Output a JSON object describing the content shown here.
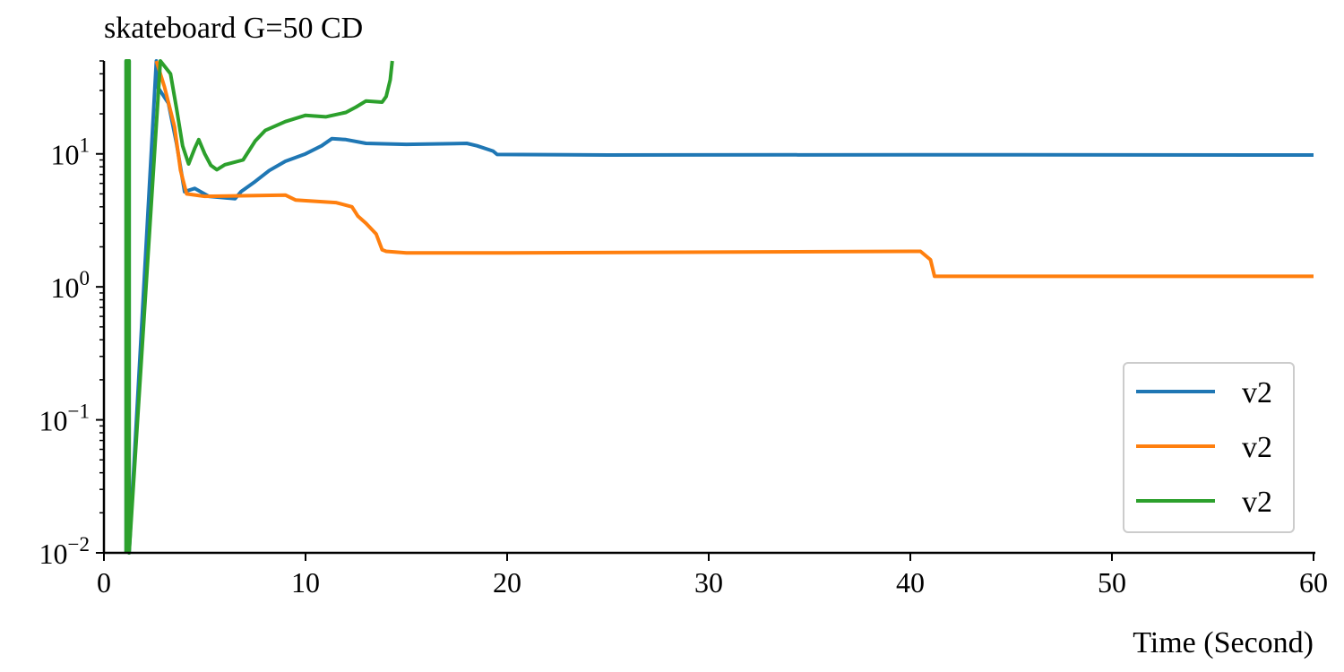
{
  "chart_data": {
    "type": "line",
    "title": "skateboard G=50 CD",
    "xlabel": "Time (Second)",
    "ylabel": "",
    "xlim": [
      0,
      60
    ],
    "ylim": [
      0.01,
      50
    ],
    "yscale": "log",
    "grid": false,
    "legend_position": "bottom-right",
    "x_ticks": [
      0,
      10,
      20,
      30,
      40,
      50,
      60
    ],
    "x_tick_labels": [
      "0",
      "10",
      "20",
      "30",
      "40",
      "50",
      "60"
    ],
    "y_ticks": [
      0.01,
      0.1,
      1,
      10
    ],
    "y_tick_labels": [
      {
        "base": "10",
        "exp": "−2"
      },
      {
        "base": "10",
        "exp": "−1"
      },
      {
        "base": "10",
        "exp": "0"
      },
      {
        "base": "10",
        "exp": "1"
      }
    ],
    "series": [
      {
        "name": "v2",
        "color": "#1f77b4",
        "points": [
          [
            1.1,
            0.01
          ],
          [
            1.1,
            50
          ],
          [
            1.25,
            50
          ],
          [
            1.25,
            0.01
          ],
          [
            2.6,
            50
          ],
          [
            2.6,
            33
          ],
          [
            3.2,
            24
          ],
          [
            3.6,
            12
          ],
          [
            4.0,
            5.2
          ],
          [
            4.5,
            5.5
          ],
          [
            5.2,
            4.8
          ],
          [
            6.5,
            4.6
          ],
          [
            6.8,
            5.2
          ],
          [
            7.5,
            6.2
          ],
          [
            8.2,
            7.5
          ],
          [
            9.0,
            8.8
          ],
          [
            10.0,
            10.0
          ],
          [
            10.8,
            11.5
          ],
          [
            11.3,
            13.0
          ],
          [
            12.0,
            12.8
          ],
          [
            13.0,
            12.0
          ],
          [
            15.0,
            11.8
          ],
          [
            18.0,
            12.0
          ],
          [
            18.5,
            11.5
          ],
          [
            19.3,
            10.5
          ],
          [
            19.5,
            9.9
          ],
          [
            25.0,
            9.8
          ],
          [
            40.0,
            9.85
          ],
          [
            60.0,
            9.8
          ]
        ]
      },
      {
        "name": "v2",
        "color": "#ff7f0e",
        "points": [
          [
            2.6,
            50
          ],
          [
            3.0,
            32
          ],
          [
            3.5,
            16
          ],
          [
            3.8,
            7.5
          ],
          [
            4.1,
            5.0
          ],
          [
            5.0,
            4.8
          ],
          [
            9.0,
            4.9
          ],
          [
            9.5,
            4.5
          ],
          [
            11.5,
            4.3
          ],
          [
            12.3,
            4.0
          ],
          [
            12.6,
            3.4
          ],
          [
            13.0,
            3.0
          ],
          [
            13.5,
            2.5
          ],
          [
            13.8,
            1.9
          ],
          [
            14.0,
            1.85
          ],
          [
            15.0,
            1.8
          ],
          [
            20.0,
            1.8
          ],
          [
            40.5,
            1.85
          ],
          [
            41.0,
            1.6
          ],
          [
            41.2,
            1.2
          ],
          [
            60.0,
            1.2
          ]
        ]
      },
      {
        "name": "v2",
        "color": "#2ca02c",
        "points": [
          [
            1.1,
            0.01
          ],
          [
            1.1,
            50
          ],
          [
            1.25,
            50
          ],
          [
            1.25,
            0.01
          ],
          [
            2.8,
            50
          ],
          [
            3.3,
            40
          ],
          [
            3.6,
            22
          ],
          [
            3.9,
            11.5
          ],
          [
            4.2,
            8.4
          ],
          [
            4.5,
            11.0
          ],
          [
            4.7,
            12.8
          ],
          [
            5.0,
            10.0
          ],
          [
            5.3,
            8.2
          ],
          [
            5.6,
            7.6
          ],
          [
            6.0,
            8.3
          ],
          [
            6.9,
            9.0
          ],
          [
            7.5,
            12.5
          ],
          [
            8.0,
            15.0
          ],
          [
            9.0,
            17.5
          ],
          [
            10.0,
            19.5
          ],
          [
            11.0,
            19.0
          ],
          [
            12.0,
            20.5
          ],
          [
            12.5,
            22.5
          ],
          [
            13.0,
            25.0
          ],
          [
            13.8,
            24.5
          ],
          [
            14.0,
            27.0
          ],
          [
            14.2,
            36.0
          ],
          [
            14.3,
            50
          ]
        ]
      }
    ]
  }
}
